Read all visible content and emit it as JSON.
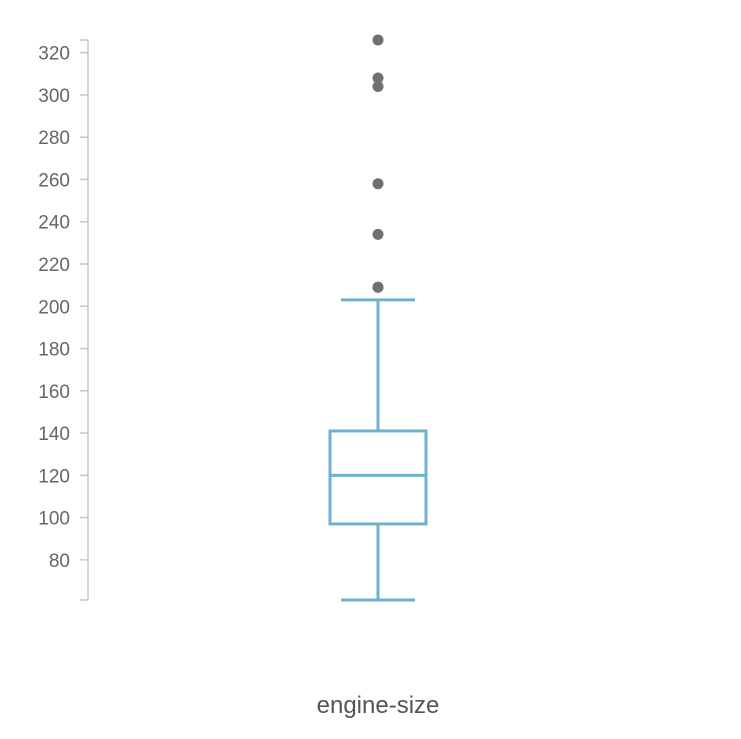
{
  "chart_data": {
    "type": "boxplot",
    "xlabel": "engine-size",
    "ylabel": "",
    "ylim": [
      61,
      326
    ],
    "yticks": [
      80,
      100,
      120,
      140,
      160,
      180,
      200,
      220,
      240,
      260,
      280,
      300,
      320
    ],
    "grid": false,
    "series": [
      {
        "category": "engine-size",
        "whisker_low": 61,
        "q1": 97,
        "median": 120,
        "q3": 141,
        "whisker_high": 203,
        "outliers": [
          209,
          209,
          234,
          258,
          304,
          308,
          326
        ]
      }
    ],
    "colors": {
      "box": "#6fb0d0",
      "outlier": "#707070",
      "axis": "#c8c8c8",
      "tick_text": "#666666",
      "label_text": "#555555"
    }
  }
}
